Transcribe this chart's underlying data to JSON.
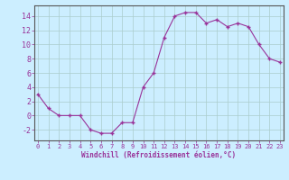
{
  "x": [
    0,
    1,
    2,
    3,
    4,
    5,
    6,
    7,
    8,
    9,
    10,
    11,
    12,
    13,
    14,
    15,
    16,
    17,
    18,
    19,
    20,
    21,
    22,
    23
  ],
  "y": [
    3,
    1,
    0,
    0,
    0,
    -2,
    -2.5,
    -2.5,
    -1,
    -1,
    4,
    6,
    11,
    14,
    14.5,
    14.5,
    13,
    13.5,
    12.5,
    13,
    12.5,
    10,
    8,
    7.5
  ],
  "line_color": "#993399",
  "marker_color": "#993399",
  "bg_color": "#cceeff",
  "grid_color": "#aacccc",
  "xlabel": "Windchill (Refroidissement éolien,°C)",
  "xlabel_color": "#993399",
  "tick_color": "#993399",
  "ylim": [
    -3.5,
    15.5
  ],
  "yticks": [
    -2,
    0,
    2,
    4,
    6,
    8,
    10,
    12,
    14
  ],
  "xticks": [
    0,
    1,
    2,
    3,
    4,
    5,
    6,
    7,
    8,
    9,
    10,
    11,
    12,
    13,
    14,
    15,
    16,
    17,
    18,
    19,
    20,
    21,
    22,
    23
  ],
  "xlim": [
    -0.3,
    23.3
  ]
}
